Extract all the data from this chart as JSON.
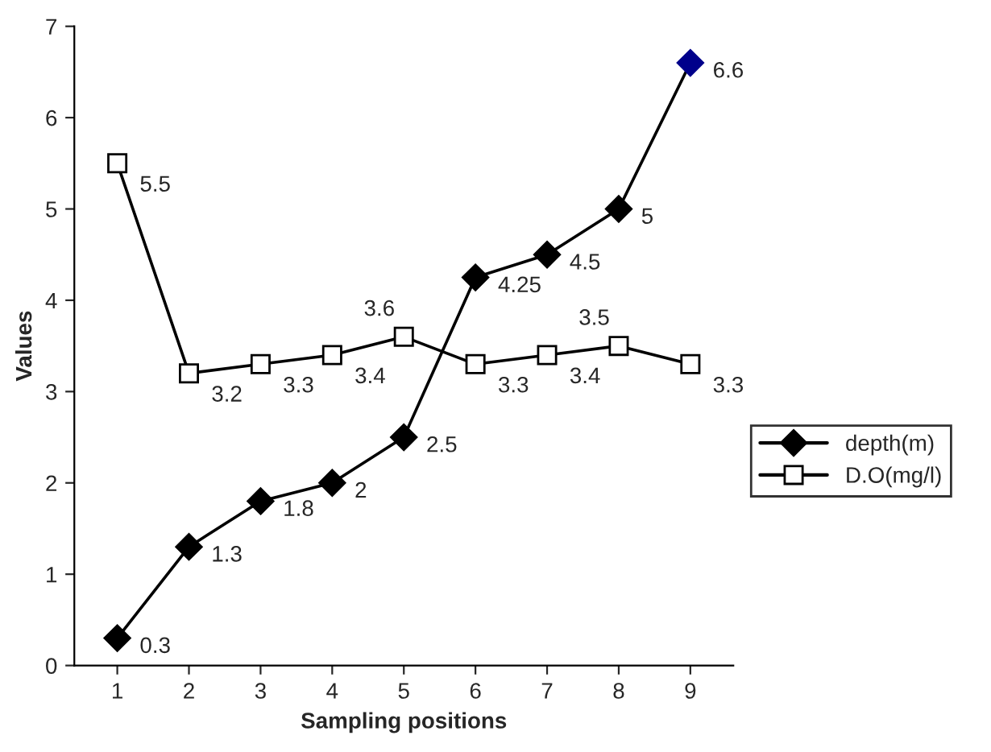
{
  "chart_data": {
    "type": "line",
    "xlabel": "Sampling positions",
    "ylabel": "Values",
    "categories": [
      "1",
      "2",
      "3",
      "4",
      "5",
      "6",
      "7",
      "8",
      "9"
    ],
    "series": [
      {
        "name": "depth(m)",
        "color": "#000000",
        "colors": [
          "#000000",
          "#000000",
          "#000000",
          "#000000",
          "#000000",
          "#000000",
          "#000000",
          "#000000",
          "#00008b"
        ],
        "marker": "diamond",
        "values": [
          0.3,
          1.3,
          1.8,
          2,
          2.5,
          4.25,
          4.5,
          5,
          6.6
        ]
      },
      {
        "name": "D.O(mg/l)",
        "color": "#000000",
        "marker": "square",
        "values": [
          5.5,
          3.2,
          3.3,
          3.4,
          3.6,
          3.3,
          3.4,
          3.5,
          3.3
        ]
      }
    ],
    "ylim": [
      0,
      7
    ],
    "yticks": [
      0,
      1,
      2,
      3,
      4,
      5,
      6,
      7
    ],
    "data_labels": true,
    "legend": "right",
    "grid": false,
    "line_style": "solid"
  }
}
